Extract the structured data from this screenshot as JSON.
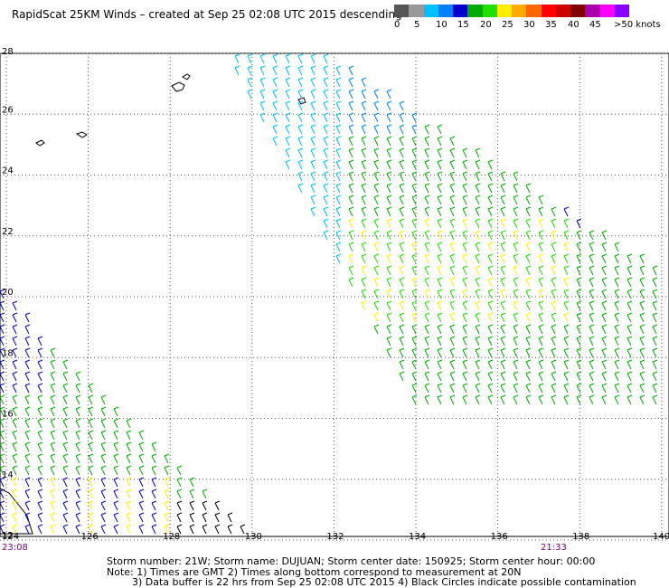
{
  "title": "RapidScat 25KM Winds – created at Sep 25 02:08 UTC 2015 descending",
  "legend": {
    "labels": [
      "0",
      "5",
      "10",
      "15",
      "20",
      "25",
      "30",
      "35",
      "40",
      "45",
      ">50 knots"
    ],
    "colors": [
      "#555555",
      "#999999",
      "#00bfff",
      "#0080ff",
      "#0000cc",
      "#00aa00",
      "#22dd00",
      "#ffee00",
      "#ffaa00",
      "#ff6600",
      "#ff0000",
      "#cc0000",
      "#800000",
      "#aa00aa",
      "#ff00ff",
      "#8800ff"
    ]
  },
  "axes": {
    "lat_ticks": [
      "28",
      "26",
      "24",
      "22",
      "20",
      "18",
      "16",
      "14",
      "12"
    ],
    "lon_ticks": [
      "124",
      "126",
      "128",
      "130",
      "132",
      "134",
      "136",
      "138",
      "140"
    ]
  },
  "times": {
    "left": "23:08",
    "right": "21:33"
  },
  "info": {
    "line1": "Storm number: 21W;  Storm name: DUJUAN;  Storm center date: 150925;  Storm center hour: 00:00",
    "line2": "Note: 1) Times are GMT  2) Times along bottom correspond to measurement at 20N",
    "line3": "3) Data buffer is 22 hrs from Sep 25 02:08 UTC 2015  4) Black Circles indicate possible contamination"
  }
}
